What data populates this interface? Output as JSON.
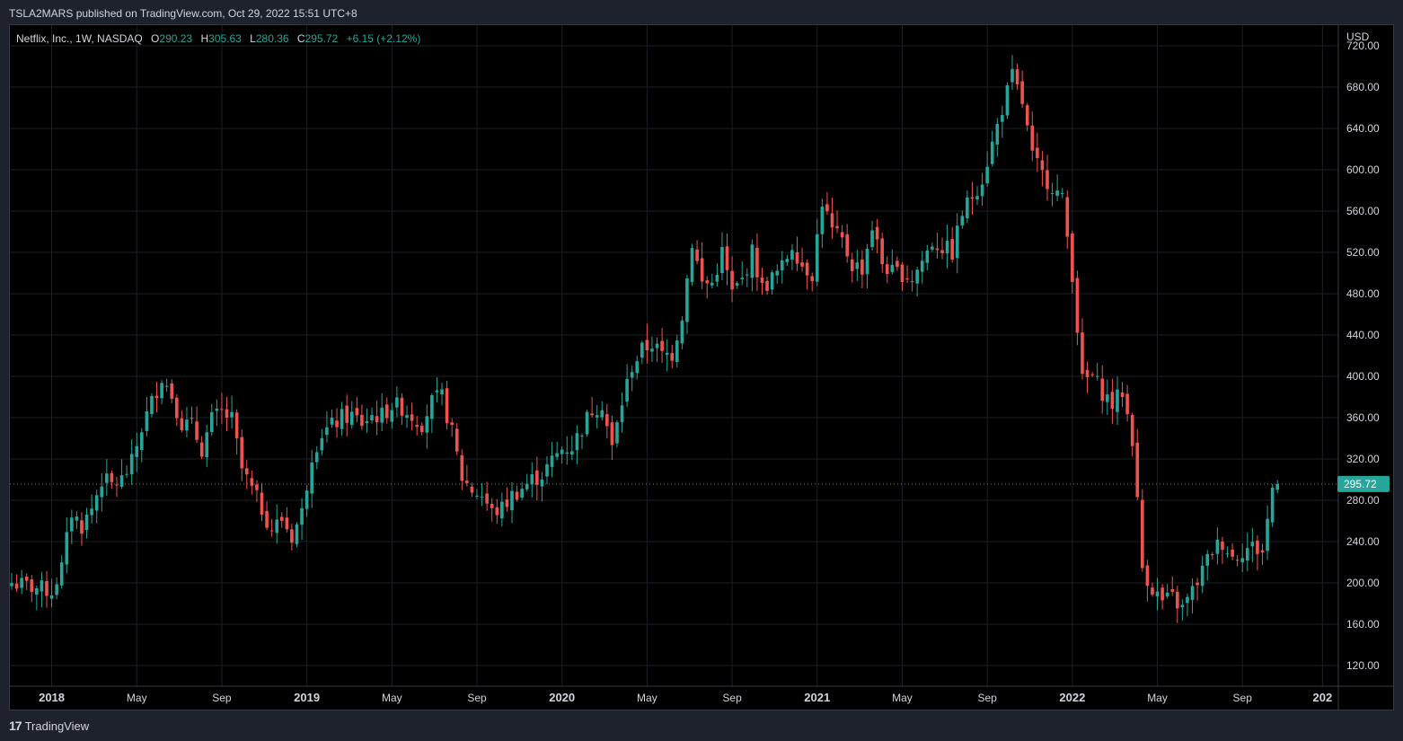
{
  "header": {
    "published": "TSLA2MARS published on TradingView.com, Oct 29, 2022 15:51 UTC+8"
  },
  "legend": {
    "symbol": "Netflix, Inc., 1W, NASDAQ",
    "o_label": "O",
    "o_value": "290.23",
    "h_label": "H",
    "h_value": "305.63",
    "l_label": "L",
    "l_value": "280.36",
    "c_label": "C",
    "c_value": "295.72",
    "change": "+6.15 (+2.12%)"
  },
  "footer": {
    "brand": "TradingView",
    "logo_text": "17"
  },
  "colors": {
    "up": "#26a69a",
    "down": "#ef5350",
    "background": "#000000",
    "grid": "#1c1f26",
    "axis_text": "#d1d4dc"
  },
  "chart_data": {
    "type": "candlestick",
    "currency": "USD",
    "ylim": [
      100,
      740
    ],
    "y_ticks": [
      "720.00",
      "680.00",
      "640.00",
      "600.00",
      "560.00",
      "520.00",
      "480.00",
      "440.00",
      "400.00",
      "360.00",
      "320.00",
      "280.00",
      "240.00",
      "200.00",
      "160.00",
      "120.00"
    ],
    "y_tick_values": [
      720,
      680,
      640,
      600,
      560,
      520,
      480,
      440,
      400,
      360,
      320,
      280,
      240,
      200,
      160,
      120
    ],
    "x_range_weeks": [
      0,
      258
    ],
    "x_ticks": [
      {
        "label": "2018",
        "week": 8,
        "bold": true
      },
      {
        "label": "May",
        "week": 25
      },
      {
        "label": "Sep",
        "week": 42
      },
      {
        "label": "2019",
        "week": 59,
        "bold": true
      },
      {
        "label": "May",
        "week": 76
      },
      {
        "label": "Sep",
        "week": 93
      },
      {
        "label": "2020",
        "week": 110,
        "bold": true
      },
      {
        "label": "May",
        "week": 127
      },
      {
        "label": "Sep",
        "week": 144
      },
      {
        "label": "2021",
        "week": 161,
        "bold": true
      },
      {
        "label": "May",
        "week": 178
      },
      {
        "label": "Sep",
        "week": 195
      },
      {
        "label": "2022",
        "week": 212,
        "bold": true
      },
      {
        "label": "May",
        "week": 229
      },
      {
        "label": "Sep",
        "week": 246
      },
      {
        "label": "202",
        "week": 262,
        "bold": true
      }
    ],
    "last_price": 295.72,
    "last_price_label": "295.72",
    "close_path": [
      [
        0,
        200
      ],
      [
        4,
        196
      ],
      [
        8,
        192
      ],
      [
        10,
        215
      ],
      [
        12,
        268
      ],
      [
        14,
        255
      ],
      [
        16,
        272
      ],
      [
        18,
        300
      ],
      [
        20,
        295
      ],
      [
        22,
        300
      ],
      [
        24,
        316
      ],
      [
        26,
        350
      ],
      [
        28,
        375
      ],
      [
        30,
        400
      ],
      [
        32,
        382
      ],
      [
        34,
        355
      ],
      [
        36,
        352
      ],
      [
        38,
        330
      ],
      [
        40,
        358
      ],
      [
        42,
        365
      ],
      [
        44,
        358
      ],
      [
        46,
        310
      ],
      [
        48,
        290
      ],
      [
        50,
        272
      ],
      [
        52,
        252
      ],
      [
        54,
        262
      ],
      [
        56,
        245
      ],
      [
        58,
        268
      ],
      [
        60,
        325
      ],
      [
        62,
        345
      ],
      [
        64,
        352
      ],
      [
        66,
        360
      ],
      [
        68,
        362
      ],
      [
        70,
        355
      ],
      [
        72,
        362
      ],
      [
        74,
        362
      ],
      [
        76,
        372
      ],
      [
        78,
        370
      ],
      [
        80,
        362
      ],
      [
        82,
        355
      ],
      [
        84,
        375
      ],
      [
        86,
        380
      ],
      [
        88,
        345
      ],
      [
        90,
        302
      ],
      [
        92,
        290
      ],
      [
        94,
        285
      ],
      [
        96,
        268
      ],
      [
        98,
        272
      ],
      [
        100,
        285
      ],
      [
        102,
        292
      ],
      [
        104,
        300
      ],
      [
        106,
        305
      ],
      [
        108,
        318
      ],
      [
        110,
        330
      ],
      [
        112,
        332
      ],
      [
        114,
        350
      ],
      [
        116,
        368
      ],
      [
        118,
        374
      ],
      [
        120,
        330
      ],
      [
        122,
        375
      ],
      [
        124,
        410
      ],
      [
        126,
        425
      ],
      [
        128,
        432
      ],
      [
        130,
        420
      ],
      [
        132,
        422
      ],
      [
        134,
        460
      ],
      [
        136,
        530
      ],
      [
        138,
        490
      ],
      [
        140,
        490
      ],
      [
        142,
        520
      ],
      [
        144,
        480
      ],
      [
        146,
        493
      ],
      [
        148,
        520
      ],
      [
        150,
        485
      ],
      [
        152,
        495
      ],
      [
        154,
        505
      ],
      [
        156,
        528
      ],
      [
        158,
        508
      ],
      [
        160,
        500
      ],
      [
        162,
        570
      ],
      [
        164,
        540
      ],
      [
        166,
        530
      ],
      [
        168,
        508
      ],
      [
        170,
        505
      ],
      [
        172,
        545
      ],
      [
        174,
        510
      ],
      [
        176,
        500
      ],
      [
        178,
        500
      ],
      [
        180,
        495
      ],
      [
        182,
        512
      ],
      [
        184,
        530
      ],
      [
        186,
        525
      ],
      [
        188,
        520
      ],
      [
        190,
        558
      ],
      [
        192,
        575
      ],
      [
        194,
        592
      ],
      [
        196,
        625
      ],
      [
        198,
        660
      ],
      [
        200,
        690
      ],
      [
        202,
        665
      ],
      [
        204,
        612
      ],
      [
        206,
        595
      ],
      [
        208,
        585
      ],
      [
        210,
        570
      ],
      [
        212,
        500
      ],
      [
        214,
        395
      ],
      [
        216,
        400
      ],
      [
        218,
        385
      ],
      [
        220,
        373
      ],
      [
        222,
        385
      ],
      [
        224,
        340
      ],
      [
        226,
        215
      ],
      [
        228,
        195
      ],
      [
        230,
        182
      ],
      [
        232,
        185
      ],
      [
        234,
        175
      ],
      [
        236,
        192
      ],
      [
        238,
        212
      ],
      [
        240,
        232
      ],
      [
        242,
        240
      ],
      [
        244,
        225
      ],
      [
        246,
        232
      ],
      [
        248,
        235
      ],
      [
        250,
        230
      ],
      [
        252,
        292
      ],
      [
        253,
        296
      ]
    ]
  }
}
